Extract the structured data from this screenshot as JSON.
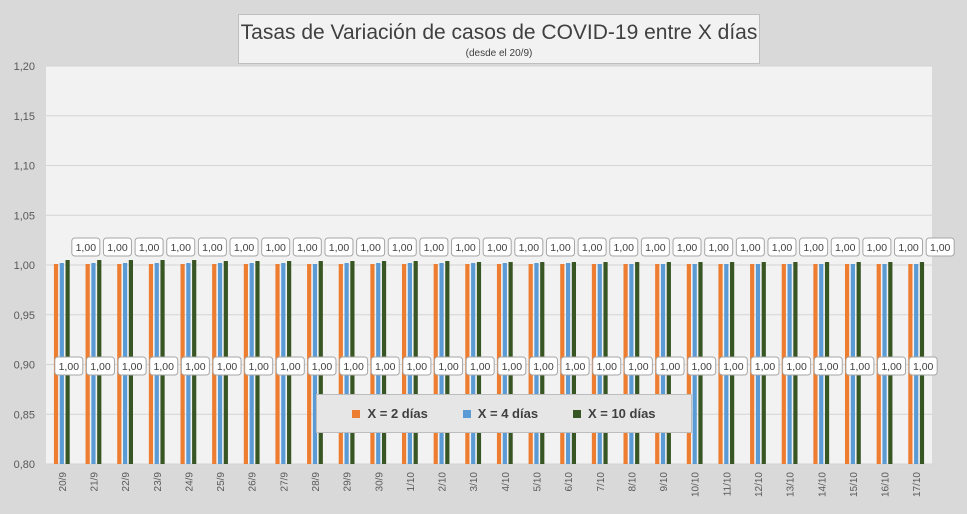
{
  "chart_data": {
    "type": "bar",
    "title": "Tasas de Variación de casos de COVID-19 entre X días",
    "subtitle": "(desde el 20/9)",
    "ylim": [
      0.8,
      1.2
    ],
    "yticks": [
      "0,80",
      "0,85",
      "0,90",
      "0,95",
      "1,00",
      "1,05",
      "1,10",
      "1,15",
      "1,20"
    ],
    "grid": true,
    "legend_position": "bottom-center",
    "categories": [
      "20/9",
      "21/9",
      "22/9",
      "23/9",
      "24/9",
      "25/9",
      "26/9",
      "27/9",
      "28/9",
      "29/9",
      "30/9",
      "1/10",
      "2/10",
      "3/10",
      "4/10",
      "5/10",
      "6/10",
      "7/10",
      "8/10",
      "9/10",
      "10/10",
      "11/10",
      "12/10",
      "13/10",
      "14/10",
      "15/10",
      "16/10",
      "17/10"
    ],
    "series": [
      {
        "name": "X = 2 días",
        "color": "#ed7d31",
        "values": [
          1.001,
          1.001,
          1.001,
          1.001,
          1.001,
          1.001,
          1.001,
          1.001,
          1.001,
          1.001,
          1.001,
          1.001,
          1.001,
          1.001,
          1.001,
          1.001,
          1.001,
          1.001,
          1.001,
          1.001,
          1.001,
          1.001,
          1.001,
          1.001,
          1.001,
          1.001,
          1.001,
          1.001
        ]
      },
      {
        "name": "X = 4 días",
        "color": "#5b9bd5",
        "values": [
          1.002,
          1.002,
          1.002,
          1.002,
          1.002,
          1.002,
          1.002,
          1.002,
          1.001,
          1.002,
          1.002,
          1.002,
          1.002,
          1.002,
          1.002,
          1.002,
          1.002,
          1.001,
          1.001,
          1.001,
          1.001,
          1.001,
          1.001,
          1.001,
          1.001,
          1.001,
          1.001,
          1.001
        ]
      },
      {
        "name": "X = 10 días",
        "color": "#375623",
        "values": [
          1.005,
          1.005,
          1.005,
          1.005,
          1.005,
          1.004,
          1.004,
          1.004,
          1.004,
          1.004,
          1.004,
          1.004,
          1.004,
          1.003,
          1.003,
          1.003,
          1.003,
          1.003,
          1.003,
          1.003,
          1.003,
          1.003,
          1.003,
          1.003,
          1.003,
          1.003,
          1.003,
          1.003
        ]
      }
    ],
    "data_label": "1,00"
  }
}
